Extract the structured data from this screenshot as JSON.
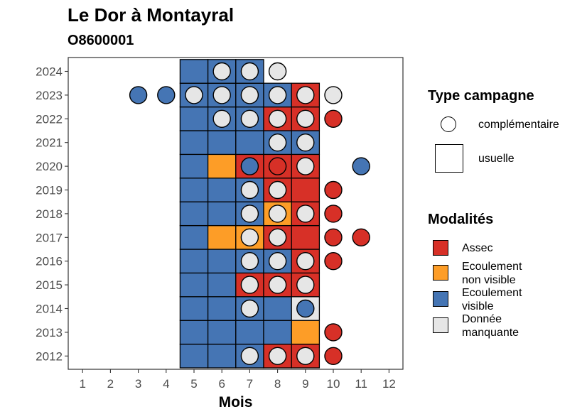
{
  "title": "Le Dor à Montayral",
  "subtitle": "O8600001",
  "colors": {
    "Assec": "#d73027",
    "Ecoulement non visible": "#fd9d27",
    "Ecoulement visible": "#4575b4",
    "Donnée manquante": "#e6e6e6"
  },
  "legend": {
    "type_title": "Type campagne",
    "type_items": [
      "complémentaire",
      "usuelle"
    ],
    "modal_title": "Modalités",
    "modal_items": [
      {
        "key": "Assec",
        "lines": [
          "Assec"
        ]
      },
      {
        "key": "Ecoulement non visible",
        "lines": [
          "Ecoulement",
          "non visible"
        ]
      },
      {
        "key": "Ecoulement visible",
        "lines": [
          "Ecoulement",
          "visible"
        ]
      },
      {
        "key": "Donnée manquante",
        "lines": [
          "Donnée",
          "manquante"
        ]
      }
    ]
  },
  "chart_data": {
    "type": "heatmap",
    "xlabel": "Mois",
    "ylabel": "",
    "x_ticks": [
      1,
      2,
      3,
      4,
      5,
      6,
      7,
      8,
      9,
      10,
      11,
      12
    ],
    "y_ticks": [
      2012,
      2013,
      2014,
      2015,
      2016,
      2017,
      2018,
      2019,
      2020,
      2021,
      2022,
      2023,
      2024
    ],
    "usuelle": {
      "2012": {
        "5": "Ecoulement visible",
        "6": "Ecoulement visible",
        "7": "Ecoulement visible",
        "8": "Assec",
        "9": "Assec"
      },
      "2013": {
        "5": "Ecoulement visible",
        "6": "Ecoulement visible",
        "7": "Ecoulement visible",
        "8": "Ecoulement visible",
        "9": "Ecoulement non visible"
      },
      "2014": {
        "5": "Ecoulement visible",
        "6": "Ecoulement visible",
        "7": "Ecoulement visible",
        "8": "Ecoulement visible",
        "9": "Donnée manquante"
      },
      "2015": {
        "5": "Ecoulement visible",
        "6": "Ecoulement visible",
        "7": "Assec",
        "8": "Assec",
        "9": "Assec"
      },
      "2016": {
        "5": "Ecoulement visible",
        "6": "Ecoulement visible",
        "7": "Ecoulement visible",
        "8": "Ecoulement visible",
        "9": "Assec"
      },
      "2017": {
        "5": "Ecoulement visible",
        "6": "Ecoulement non visible",
        "7": "Ecoulement non visible",
        "8": "Assec",
        "9": "Assec"
      },
      "2018": {
        "5": "Ecoulement visible",
        "6": "Ecoulement visible",
        "7": "Ecoulement visible",
        "8": "Ecoulement non visible",
        "9": "Assec"
      },
      "2019": {
        "5": "Ecoulement visible",
        "6": "Ecoulement visible",
        "7": "Ecoulement visible",
        "8": "Assec",
        "9": "Assec"
      },
      "2020": {
        "5": "Ecoulement visible",
        "6": "Ecoulement non visible",
        "7": "Assec",
        "8": "Assec",
        "9": "Assec"
      },
      "2021": {
        "5": "Ecoulement visible",
        "6": "Ecoulement visible",
        "7": "Ecoulement visible",
        "8": "Ecoulement visible",
        "9": "Ecoulement visible"
      },
      "2022": {
        "5": "Ecoulement visible",
        "6": "Ecoulement visible",
        "7": "Ecoulement visible",
        "8": "Assec",
        "9": "Assec"
      },
      "2023": {
        "5": "Ecoulement visible",
        "6": "Ecoulement visible",
        "7": "Ecoulement visible",
        "8": "Ecoulement visible",
        "9": "Assec"
      },
      "2024": {
        "5": "Ecoulement visible",
        "6": "Ecoulement visible",
        "7": "Ecoulement visible"
      }
    },
    "complementaire": {
      "2012": {
        "7": "Donnée manquante",
        "8": "Donnée manquante",
        "9": "Donnée manquante",
        "10": "Assec"
      },
      "2013": {
        "10": "Assec"
      },
      "2014": {
        "7": "Donnée manquante",
        "9": "Ecoulement visible"
      },
      "2015": {
        "7": "Donnée manquante",
        "8": "Donnée manquante",
        "9": "Donnée manquante"
      },
      "2016": {
        "7": "Donnée manquante",
        "8": "Donnée manquante",
        "9": "Donnée manquante",
        "10": "Assec"
      },
      "2017": {
        "7": "Donnée manquante",
        "8": "Donnée manquante",
        "10": "Assec",
        "11": "Assec"
      },
      "2018": {
        "7": "Donnée manquante",
        "8": "Donnée manquante",
        "9": "Donnée manquante",
        "10": "Assec"
      },
      "2019": {
        "7": "Donnée manquante",
        "8": "Donnée manquante",
        "10": "Assec"
      },
      "2020": {
        "7": "Ecoulement visible",
        "8": "Assec",
        "9": "Donnée manquante",
        "11": "Ecoulement visible"
      },
      "2021": {
        "8": "Donnée manquante",
        "9": "Donnée manquante"
      },
      "2022": {
        "6": "Donnée manquante",
        "7": "Donnée manquante",
        "8": "Donnée manquante",
        "9": "Donnée manquante",
        "10": "Assec"
      },
      "2023": {
        "3": "Ecoulement visible",
        "4": "Ecoulement visible",
        "5": "Donnée manquante",
        "6": "Donnée manquante",
        "7": "Donnée manquante",
        "8": "Donnée manquante",
        "9": "Donnée manquante",
        "10": "Donnée manquante"
      },
      "2024": {
        "6": "Donnée manquante",
        "7": "Donnée manquante",
        "8": "Donnée manquante"
      }
    }
  }
}
